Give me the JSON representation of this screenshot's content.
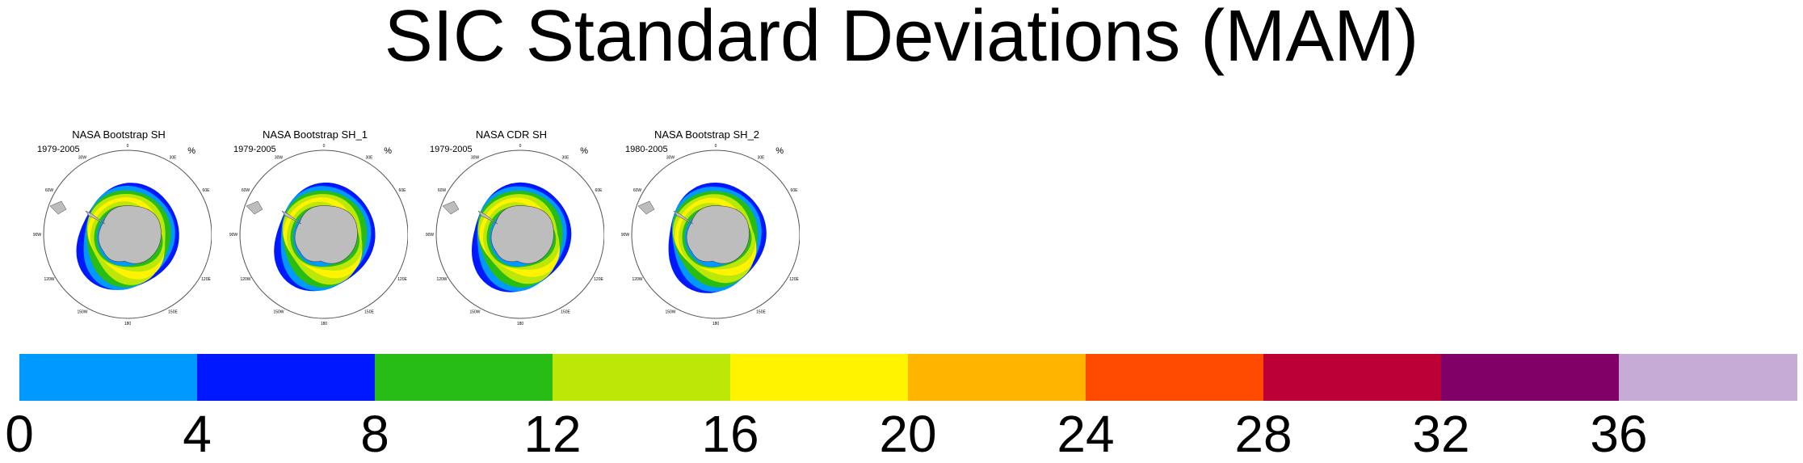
{
  "title": "SIC Standard Deviations (MAM)",
  "panels": [
    {
      "title": "NASA Bootstrap SH",
      "years": "1979-2005",
      "unit": "%"
    },
    {
      "title": "NASA Bootstrap SH_1",
      "years": "1979-2005",
      "unit": "%"
    },
    {
      "title": "NASA CDR SH",
      "years": "1979-2005",
      "unit": "%"
    },
    {
      "title": "NASA Bootstrap SH_2",
      "years": "1980-2005",
      "unit": "%"
    }
  ],
  "map_labels": {
    "lon": [
      "0",
      "30E",
      "60E",
      "90E",
      "120E",
      "150E",
      "180",
      "150W",
      "120W",
      "90W",
      "60W",
      "30W"
    ]
  },
  "chart_data": {
    "type": "heatmap",
    "title": "SIC Standard Deviations (MAM)",
    "colorbar": {
      "ticks": [
        "0",
        "4",
        "8",
        "12",
        "16",
        "20",
        "24",
        "28",
        "32",
        "36"
      ],
      "bounds": [
        0,
        4,
        8,
        12,
        16,
        20,
        24,
        28,
        32,
        36,
        40
      ],
      "colors": [
        "#0099ff",
        "#0018ff",
        "#28bd14",
        "#bde807",
        "#fff300",
        "#ffb400",
        "#ff4b00",
        "#bc0035",
        "#810068",
        "#c7abd7"
      ]
    }
  }
}
